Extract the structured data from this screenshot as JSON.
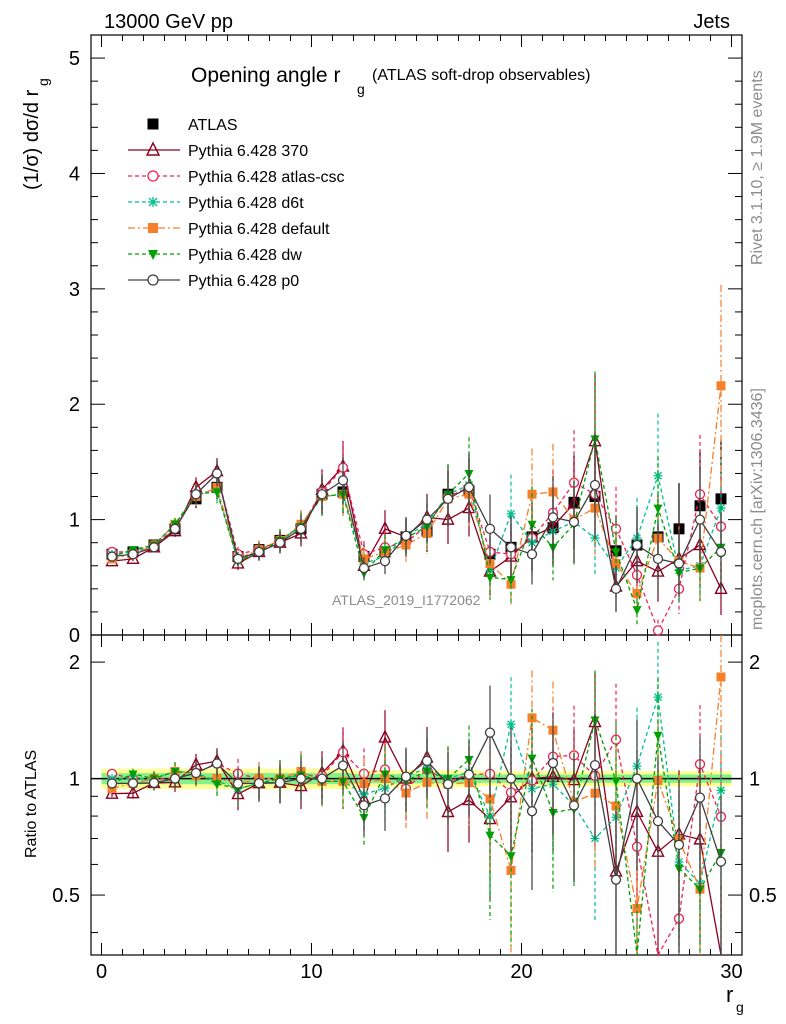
{
  "header": {
    "left": "13000 GeV pp",
    "right": "Jets"
  },
  "side_labels": {
    "rivet": "Rivet 3.1.10, ≥ 1.9M events",
    "mcplots": "mcplots.cern.ch [arXiv:1306.3436]"
  },
  "chart_data": {
    "type": "line",
    "title_main": "Opening angle r",
    "title_sub": "g",
    "title_paren": "(ATLAS soft-drop observables)",
    "watermark": "ATLAS_2019_I1772062",
    "ylabel": "(1/σ) dσ/d r",
    "ylabel_sub": "g",
    "ratio_ylabel": "Ratio to ATLAS",
    "xlabel": "r",
    "xlabel_sub": "g",
    "xlim": [
      -0.5,
      30.5
    ],
    "ylim": [
      0,
      5.2
    ],
    "ratio_ylim": [
      0.35,
      2.35
    ],
    "x_ticks": [
      "0",
      "10",
      "20",
      "30"
    ],
    "y_ticks": [
      "0",
      "1",
      "2",
      "3",
      "4",
      "5"
    ],
    "ratio_ticks": [
      "0.5",
      "1",
      "2"
    ],
    "legend_position": "top-left",
    "x": [
      0.5,
      1.5,
      2.5,
      3.5,
      4.5,
      5.5,
      6.5,
      7.5,
      8.5,
      9.5,
      10.5,
      11.5,
      12.5,
      13.5,
      14.5,
      15.5,
      16.5,
      17.5,
      18.5,
      19.5,
      20.5,
      21.5,
      22.5,
      23.5,
      24.5,
      25.5,
      26.5,
      27.5,
      28.5,
      29.5
    ],
    "series": [
      {
        "name": "ATLAS",
        "color": "#000000",
        "marker": "square-filled",
        "dash": "none",
        "values": [
          0.7,
          0.72,
          0.78,
          0.92,
          1.18,
          1.28,
          0.68,
          0.74,
          0.82,
          0.92,
          1.22,
          1.24,
          0.68,
          0.72,
          0.85,
          0.9,
          1.22,
          1.25,
          0.7,
          0.76,
          0.85,
          0.93,
          1.15,
          1.2,
          0.73,
          0.78,
          0.85,
          0.92,
          1.12,
          1.18
        ]
      },
      {
        "name": "Pythia 6.428 370",
        "color": "#8b0020",
        "marker": "triangle-open",
        "dash": "none",
        "values": [
          0.64,
          0.66,
          0.76,
          0.9,
          1.28,
          1.42,
          0.62,
          0.72,
          0.8,
          0.88,
          1.26,
          1.46,
          0.6,
          0.92,
          0.85,
          1.02,
          1.0,
          1.1,
          0.55,
          0.68,
          0.85,
          0.94,
          1.14,
          1.68,
          0.42,
          0.64,
          0.55,
          0.66,
          0.78,
          0.4
        ]
      },
      {
        "name": "Pythia 6.428 atlas-csc",
        "color": "#ee2255",
        "marker": "circle-open",
        "dash": "dashed",
        "values": [
          0.72,
          0.72,
          0.78,
          0.92,
          1.22,
          1.4,
          0.7,
          0.74,
          0.82,
          0.94,
          1.24,
          1.45,
          0.7,
          0.76,
          0.8,
          0.95,
          1.2,
          1.28,
          0.72,
          0.7,
          0.84,
          1.06,
          1.32,
          1.22,
          0.92,
          0.52,
          0.04,
          0.4,
          1.22,
          0.94
        ]
      },
      {
        "name": "Pythia 6.428 d6t",
        "color": "#00c090",
        "marker": "star",
        "dash": "dashed",
        "values": [
          0.7,
          0.72,
          0.78,
          0.96,
          1.22,
          1.26,
          0.64,
          0.72,
          0.8,
          0.96,
          1.2,
          1.22,
          0.62,
          0.68,
          0.86,
          0.96,
          1.22,
          1.3,
          0.56,
          1.05,
          0.8,
          0.9,
          0.98,
          0.84,
          0.58,
          0.84,
          1.38,
          0.56,
          0.6,
          1.1
        ]
      },
      {
        "name": "Pythia 6.428 default",
        "color": "#f57f2a",
        "marker": "square-filled",
        "dash": "dashdot",
        "values": [
          0.66,
          0.7,
          0.78,
          0.96,
          1.2,
          1.28,
          0.66,
          0.74,
          0.82,
          0.96,
          1.2,
          1.22,
          0.66,
          0.72,
          0.78,
          0.88,
          1.18,
          1.22,
          0.62,
          0.44,
          1.22,
          1.24,
          1.0,
          1.1,
          0.62,
          0.36,
          0.84,
          0.64,
          0.58,
          2.16
        ]
      },
      {
        "name": "Pythia 6.428 dw",
        "color": "#00a000",
        "marker": "triangle-down-filled",
        "dash": "dashed",
        "values": [
          0.68,
          0.74,
          0.78,
          0.96,
          1.22,
          1.24,
          0.64,
          0.72,
          0.82,
          0.94,
          1.2,
          1.22,
          0.54,
          0.74,
          0.84,
          0.94,
          1.22,
          1.4,
          0.5,
          0.48,
          0.96,
          0.76,
          0.96,
          1.7,
          0.72,
          0.22,
          1.1,
          0.54,
          0.58,
          0.76
        ]
      },
      {
        "name": "Pythia 6.428 p0",
        "color": "#404040",
        "marker": "circle-open",
        "dash": "none",
        "values": [
          0.68,
          0.7,
          0.76,
          0.92,
          1.22,
          1.4,
          0.66,
          0.72,
          0.8,
          0.92,
          1.22,
          1.34,
          0.58,
          0.64,
          0.86,
          1.0,
          1.18,
          1.28,
          0.92,
          0.76,
          0.7,
          1.02,
          0.98,
          1.3,
          0.4,
          0.78,
          0.66,
          0.62,
          1.0,
          0.72
        ]
      }
    ]
  }
}
